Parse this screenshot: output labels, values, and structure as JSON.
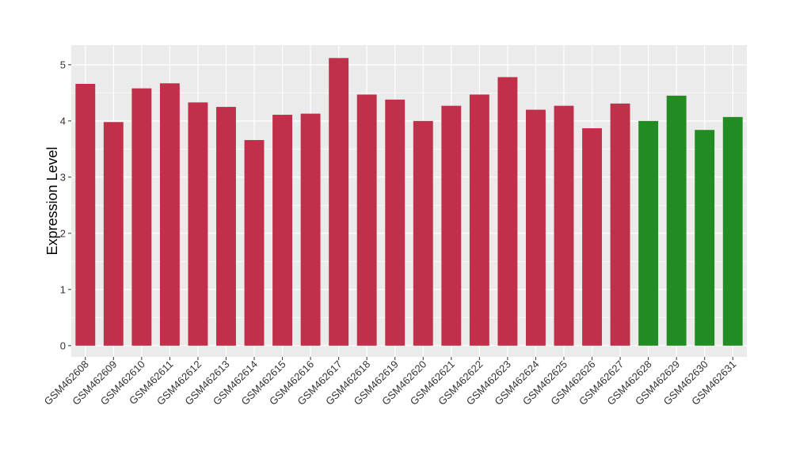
{
  "chart_data": {
    "type": "bar",
    "title": "",
    "xlabel": "",
    "ylabel": "Expression Level",
    "ylim": [
      -0.2,
      5.35
    ],
    "yticks": [
      0,
      1,
      2,
      3,
      4,
      5
    ],
    "grid": true,
    "legend": "none",
    "categories": [
      "GSM462608",
      "GSM462609",
      "GSM462610",
      "GSM462611",
      "GSM462612",
      "GSM462613",
      "GSM462614",
      "GSM462615",
      "GSM462616",
      "GSM462617",
      "GSM462618",
      "GSM462619",
      "GSM462620",
      "GSM462621",
      "GSM462622",
      "GSM462623",
      "GSM462624",
      "GSM462625",
      "GSM462626",
      "GSM462627",
      "GSM462628",
      "GSM462629",
      "GSM462630",
      "GSM462631"
    ],
    "values": [
      4.66,
      3.98,
      4.58,
      4.67,
      4.33,
      4.25,
      3.66,
      4.11,
      4.13,
      5.12,
      4.47,
      4.38,
      4.0,
      4.27,
      4.47,
      4.78,
      4.2,
      4.27,
      3.87,
      4.31,
      4.0,
      4.45,
      3.84,
      4.07
    ],
    "bar_colors": [
      "#c0304a",
      "#c0304a",
      "#c0304a",
      "#c0304a",
      "#c0304a",
      "#c0304a",
      "#c0304a",
      "#c0304a",
      "#c0304a",
      "#c0304a",
      "#c0304a",
      "#c0304a",
      "#c0304a",
      "#c0304a",
      "#c0304a",
      "#c0304a",
      "#c0304a",
      "#c0304a",
      "#c0304a",
      "#c0304a",
      "#228b22",
      "#228b22",
      "#228b22",
      "#228b22"
    ],
    "panel_background": "#ebebeb",
    "grid_color": "#ffffff"
  }
}
